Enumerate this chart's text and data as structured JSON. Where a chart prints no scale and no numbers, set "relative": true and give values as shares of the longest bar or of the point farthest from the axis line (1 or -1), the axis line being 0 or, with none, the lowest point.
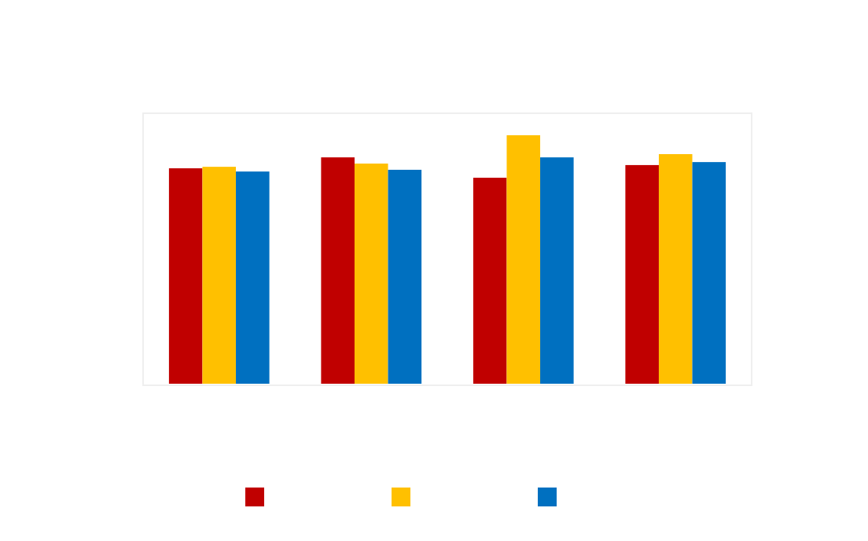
{
  "chart_data": {
    "type": "bar",
    "relative": true,
    "categories": [
      null,
      null,
      null,
      null
    ],
    "series": [
      {
        "color": "#c00000",
        "values": [
          0.867,
          0.911,
          0.829,
          0.88
        ]
      },
      {
        "color": "#ffc000",
        "values": [
          0.873,
          0.886,
          1,
          0.924
        ]
      },
      {
        "color": "#0070c0",
        "values": [
          0.854,
          0.861,
          0.911,
          0.892
        ]
      }
    ]
  }
}
